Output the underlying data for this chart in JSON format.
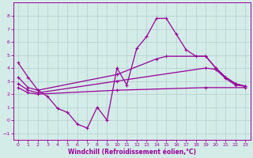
{
  "xlabel": "Windchill (Refroidissement éolien,°C)",
  "xlim": [
    -0.5,
    23.5
  ],
  "ylim": [
    -1.5,
    9.0
  ],
  "yticks": [
    -1,
    0,
    1,
    2,
    3,
    4,
    5,
    6,
    7,
    8
  ],
  "xticks": [
    0,
    1,
    2,
    3,
    4,
    5,
    6,
    7,
    8,
    9,
    10,
    11,
    12,
    13,
    14,
    15,
    16,
    17,
    18,
    19,
    20,
    21,
    22,
    23
  ],
  "bg_color": "#d4ece8",
  "line_color": "#990099",
  "grid_color": "#b0d0cc",
  "curve1_x": [
    0,
    1,
    2,
    3,
    4,
    5,
    6,
    7,
    8,
    9,
    10,
    11,
    12,
    13,
    14,
    15,
    16,
    17,
    18,
    19,
    20,
    21,
    22,
    23
  ],
  "curve1_y": [
    4.4,
    3.3,
    2.3,
    1.8,
    0.9,
    0.6,
    -0.3,
    -0.6,
    1.0,
    0.0,
    4.0,
    2.7,
    5.5,
    6.4,
    7.8,
    7.8,
    6.6,
    5.4,
    4.9,
    4.9,
    4.0,
    3.3,
    2.8,
    2.6
  ],
  "curve2_x": [
    0,
    1,
    2,
    10,
    14,
    15,
    19,
    20,
    21,
    22,
    23
  ],
  "curve2_y": [
    3.3,
    2.5,
    2.3,
    3.5,
    4.7,
    4.9,
    4.9,
    4.0,
    3.3,
    2.8,
    2.6
  ],
  "curve3_x": [
    0,
    1,
    2,
    10,
    19,
    20,
    21,
    22,
    23
  ],
  "curve3_y": [
    2.8,
    2.3,
    2.1,
    3.0,
    4.0,
    3.9,
    3.2,
    2.7,
    2.6
  ],
  "curve4_x": [
    0,
    1,
    2,
    10,
    19,
    23
  ],
  "curve4_y": [
    2.5,
    2.1,
    2.0,
    2.3,
    2.5,
    2.5
  ]
}
